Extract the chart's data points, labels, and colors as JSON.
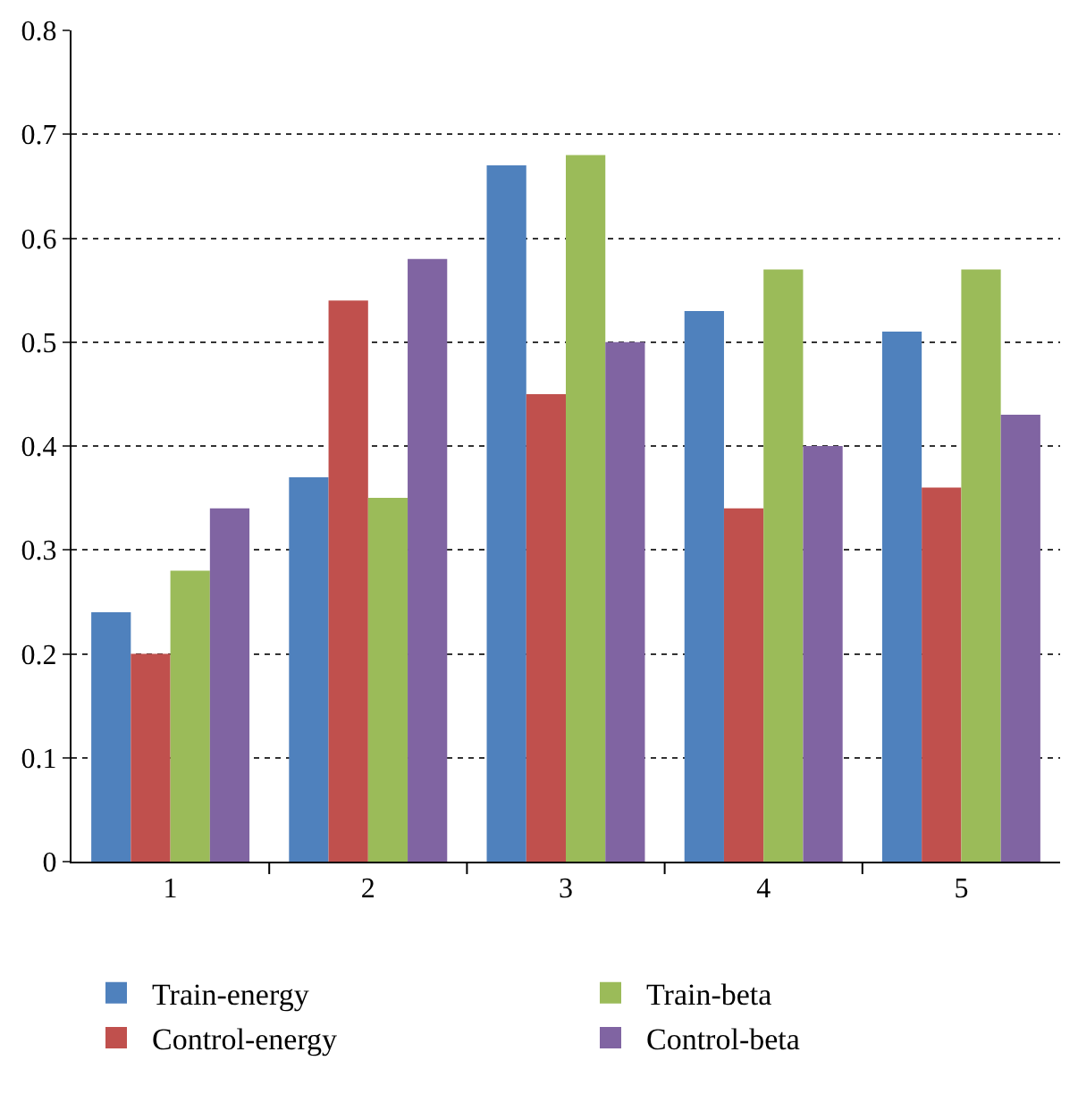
{
  "chart_data": {
    "type": "bar",
    "categories": [
      "1",
      "2",
      "3",
      "4",
      "5"
    ],
    "series": [
      {
        "name": "Train-energy",
        "color": "#4f81bd",
        "values": [
          0.24,
          0.37,
          0.67,
          0.53,
          0.51
        ]
      },
      {
        "name": "Control-energy",
        "color": "#c0504d",
        "values": [
          0.2,
          0.54,
          0.45,
          0.34,
          0.36
        ]
      },
      {
        "name": "Train-beta",
        "color": "#9bbb59",
        "values": [
          0.28,
          0.35,
          0.68,
          0.57,
          0.57
        ]
      },
      {
        "name": "Control-beta",
        "color": "#8064a2",
        "values": [
          0.34,
          0.58,
          0.5,
          0.4,
          0.43
        ]
      }
    ],
    "ylim": [
      0,
      0.8
    ],
    "yticks": [
      0,
      0.1,
      0.2,
      0.3,
      0.4,
      0.5,
      0.6,
      0.7,
      0.8
    ],
    "grid": "y",
    "line_style": "dotted",
    "legend": "bottom"
  }
}
